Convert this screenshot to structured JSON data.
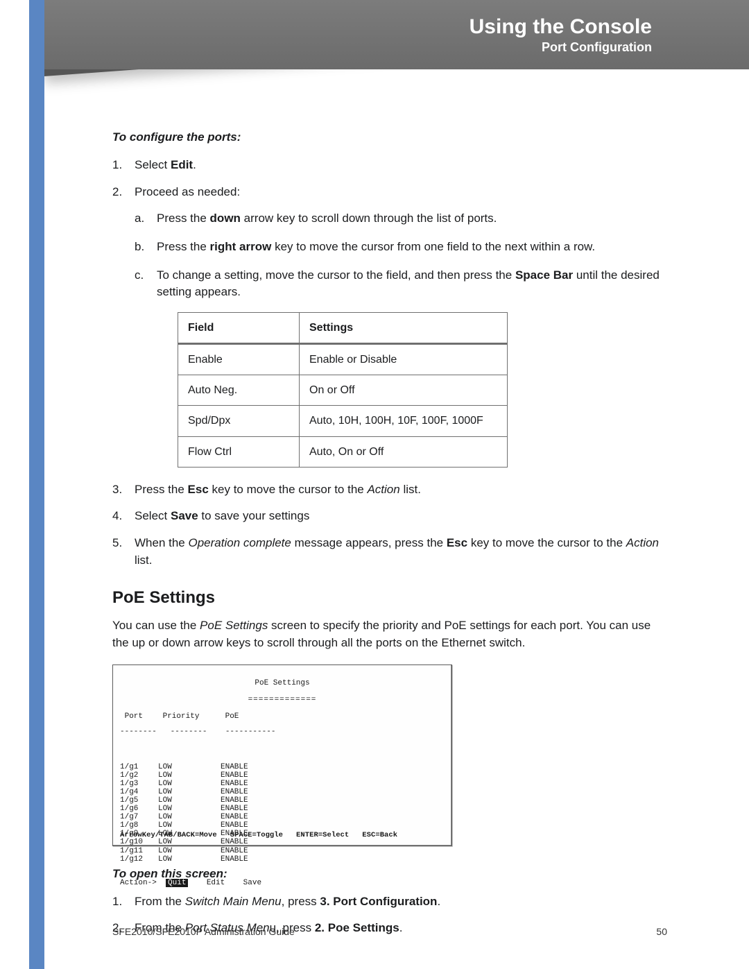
{
  "header": {
    "title": "Using the Console",
    "subtitle": "Port Configuration"
  },
  "proc_configure": {
    "title": "To configure the ports:",
    "steps": {
      "s1_pre": "Select ",
      "s1_bold": "Edit",
      "s1_post": ".",
      "s2": "Proceed as needed:",
      "s2a_pre": "Press the ",
      "s2a_bold": "down",
      "s2a_post": " arrow key to scroll down through the list of ports.",
      "s2b_pre": "Press the ",
      "s2b_bold": "right arrow",
      "s2b_post": " key to move the cursor from one field to the next within a row.",
      "s2c_pre": "To change a setting, move the cursor to the field, and then press the ",
      "s2c_bold": "Space Bar",
      "s2c_post": " until the desired setting appears.",
      "s3_pre": "Press the ",
      "s3_bold": "Esc",
      "s3_mid": " key to move the cursor to the ",
      "s3_ital": "Action",
      "s3_post": " list.",
      "s4_pre": "Select ",
      "s4_bold": "Save",
      "s4_post": " to save your settings",
      "s5_p1": "When the ",
      "s5_i1": "Operation complete",
      "s5_p2": " message appears, press the ",
      "s5_b1": "Esc",
      "s5_p3": " key to move the cursor to the ",
      "s5_i2": "Action",
      "s5_p4": " list."
    }
  },
  "settings_table": {
    "header_field": "Field",
    "header_settings": "Settings",
    "rows": [
      {
        "field": "Enable",
        "settings": "Enable or Disable"
      },
      {
        "field": "Auto Neg.",
        "settings": "On or Off"
      },
      {
        "field": "Spd/Dpx",
        "settings": "Auto, 10H, 100H, 10F, 100F, 1000F"
      },
      {
        "field": "Flow Ctrl",
        "settings": "Auto, On or Off"
      }
    ]
  },
  "poe_section": {
    "heading": "PoE Settings",
    "intro_p1": "You can use the ",
    "intro_i1": "PoE Settings",
    "intro_p2": " screen to specify the priority and PoE settings for each port. You can use the up or down arrow keys to scroll through all the ports on the Ethernet switch."
  },
  "console": {
    "title": "PoE Settings",
    "sep": "=============",
    "hdr_port": "Port",
    "hdr_priority": "Priority",
    "hdr_poe": "PoE",
    "divider": "--------   --------    -----------",
    "rows": [
      {
        "port": "1/g1",
        "priority": "LOW",
        "poe": "ENABLE"
      },
      {
        "port": "1/g2",
        "priority": "LOW",
        "poe": "ENABLE"
      },
      {
        "port": "1/g3",
        "priority": "LOW",
        "poe": "ENABLE"
      },
      {
        "port": "1/g4",
        "priority": "LOW",
        "poe": "ENABLE"
      },
      {
        "port": "1/g5",
        "priority": "LOW",
        "poe": "ENABLE"
      },
      {
        "port": "1/g6",
        "priority": "LOW",
        "poe": "ENABLE"
      },
      {
        "port": "1/g7",
        "priority": "LOW",
        "poe": "ENABLE"
      },
      {
        "port": "1/g8",
        "priority": "LOW",
        "poe": "ENABLE"
      },
      {
        "port": "1/g9",
        "priority": "LOW",
        "poe": "ENABLE"
      },
      {
        "port": "1/g10",
        "priority": "LOW",
        "poe": "ENABLE"
      },
      {
        "port": "1/g11",
        "priority": "LOW",
        "poe": "ENABLE"
      },
      {
        "port": "1/g12",
        "priority": "LOW",
        "poe": "ENABLE"
      }
    ],
    "action_label": "Action->",
    "action_quit": "Quit",
    "action_edit": "Edit",
    "action_save": "Save",
    "help": "ArrowKey/TAB/BACK=Move   SPACE=Toggle   ENTER=Select   ESC=Back"
  },
  "proc_open": {
    "title": "To open this screen:",
    "s1_p1": "From the ",
    "s1_i1": "Switch Main Menu",
    "s1_p2": ", press ",
    "s1_b1": "3. Port Configuration",
    "s1_p3": ".",
    "s2_p1": "From the ",
    "s2_i1": "Port Status Men",
    "s2_p2": "u, press ",
    "s2_b1": "2. Poe Settings",
    "s2_p3": "."
  },
  "footer": {
    "guide": "SFE2010/SFE2010P Administration Guide",
    "page": "50"
  },
  "colors": {
    "accent": "#5a86c3",
    "header_bg": "#6f6f6f",
    "text": "#1b1c1e"
  }
}
